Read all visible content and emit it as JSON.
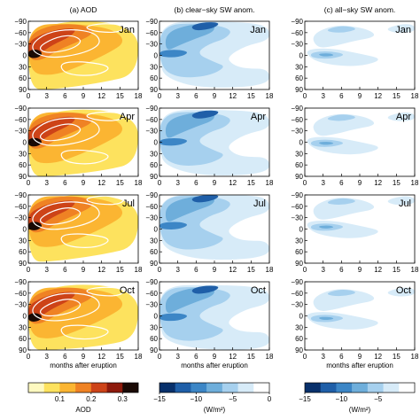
{
  "chart_data": {
    "type": "heatmap",
    "panel_titles": [
      "(a) AOD",
      "(b) clear−sky SW anom.",
      "(c) all−sky SW anom."
    ],
    "row_months": [
      "Jan",
      "Apr",
      "Jul",
      "Oct"
    ],
    "xlabel": "months after eruption",
    "x_ticks": [
      "0",
      "3",
      "6",
      "9",
      "12",
      "15",
      "18"
    ],
    "y_ticks": [
      "−90",
      "−60",
      "−30",
      "0",
      "30",
      "60",
      "90"
    ],
    "xlim": [
      0,
      18
    ],
    "ylim": [
      -90,
      90
    ],
    "colorbars": [
      {
        "label": "AOD",
        "ticks": [
          "0.1",
          "0.2",
          "0.3"
        ],
        "tick_values": [
          0.1,
          0.2,
          0.3
        ],
        "range": [
          0,
          0.35
        ],
        "colors": [
          "#fef9c0",
          "#fde25e",
          "#fbb532",
          "#ef8224",
          "#cd4318",
          "#8e1a0c",
          "#1a0a05"
        ]
      },
      {
        "label": "(W/m²)",
        "ticks": [
          "−15",
          "−10",
          "−5",
          "0"
        ],
        "tick_values": [
          -15,
          -10,
          -5,
          0
        ],
        "range": [
          -15,
          0
        ],
        "colors": [
          "#08306b",
          "#1f5fa8",
          "#3c86c6",
          "#6eaedb",
          "#a6d0ee",
          "#d7ebf8",
          "#ffffff"
        ]
      },
      {
        "label": "(W/m²)",
        "ticks": [
          "−15",
          "−10",
          "−5"
        ],
        "tick_values": [
          -15,
          -10,
          -5
        ],
        "range": [
          -15,
          0
        ],
        "colors": [
          "#08306b",
          "#1f5fa8",
          "#3c86c6",
          "#6eaedb",
          "#a6d0ee",
          "#d7ebf8",
          "#ffffff"
        ]
      }
    ]
  }
}
